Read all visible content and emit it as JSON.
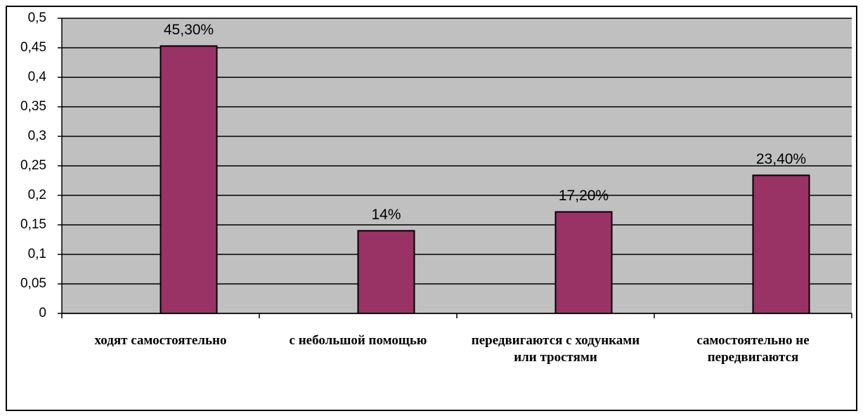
{
  "chart_data": {
    "type": "bar",
    "categories": [
      "ходят самостоятельно",
      "с небольшой помощью",
      "передвигаются с ходунками или тростями",
      "самостоятельно не передвигаются"
    ],
    "values": [
      0.453,
      0.14,
      0.172,
      0.234
    ],
    "value_labels": [
      "45,30%",
      "14%",
      "17,20%",
      "23,40%"
    ],
    "color": "#993366",
    "ylim": [
      0,
      0.5
    ],
    "yticks": [
      0,
      {
        "value": 0.05,
        "label": "0,05"
      },
      {
        "value": 0.1,
        "label": "0,1"
      },
      {
        "value": 0.15,
        "label": "0,15"
      },
      {
        "value": 0.2,
        "label": "0,2"
      },
      {
        "value": 0.25,
        "label": "0,25"
      },
      {
        "value": 0.3,
        "label": "0,3"
      },
      {
        "value": 0.35,
        "label": "0,35"
      },
      {
        "value": 0.4,
        "label": "0,4"
      },
      {
        "value": 0.45,
        "label": "0,45"
      },
      {
        "value": 0.5,
        "label": "0,5"
      }
    ],
    "grid": true
  }
}
